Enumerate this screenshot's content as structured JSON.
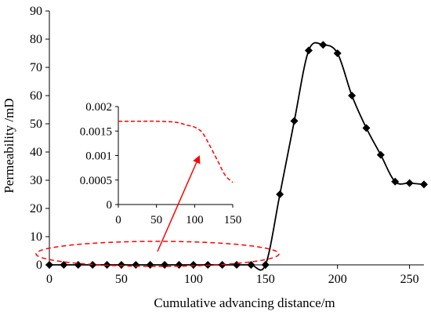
{
  "chart_data": {
    "type": "line",
    "xlabel": "Cumulative advancing  distance/m",
    "ylabel": "Permeability /mD",
    "xlim": [
      0,
      260
    ],
    "ylim": [
      0,
      90
    ],
    "x_ticks": [
      0,
      50,
      100,
      150,
      200,
      250
    ],
    "y_ticks": [
      0,
      10,
      20,
      30,
      40,
      50,
      60,
      70,
      80,
      90
    ],
    "series": [
      {
        "marker": "diamond",
        "color": "#000000",
        "x": [
          0,
          10,
          20,
          30,
          40,
          50,
          60,
          70,
          80,
          90,
          100,
          110,
          120,
          130,
          140,
          150,
          160,
          170,
          180,
          190,
          200,
          210,
          220,
          230,
          240,
          250,
          260
        ],
        "y": [
          0.0017,
          0.0017,
          0.0017,
          0.0017,
          0.0017,
          0.0017,
          0.0017,
          0.0016,
          0.0016,
          0.0016,
          0.0015,
          0.0014,
          0.0012,
          0.0009,
          0.0005,
          0.0003,
          25,
          51,
          76,
          78,
          75,
          60,
          48.5,
          39,
          29.5,
          29,
          28.5
        ]
      }
    ],
    "grid": false,
    "legend": "none",
    "inset": {
      "xlim": [
        0,
        150
      ],
      "ylim": [
        0,
        0.002
      ],
      "x_ticks": [
        "0",
        "50",
        "100",
        "150"
      ],
      "y_ticks": [
        "0",
        "0.0005",
        "0.001",
        "0.0015",
        "0.002"
      ],
      "series": [
        {
          "color": "#ff0000",
          "dash": "dashed",
          "x": [
            0,
            25,
            50,
            75,
            90,
            100,
            110,
            120,
            130,
            140,
            150
          ],
          "y": [
            0.0017,
            0.0017,
            0.0017,
            0.00168,
            0.00162,
            0.00158,
            0.00147,
            0.0012,
            0.0009,
            0.0006,
            0.00045
          ]
        }
      ]
    },
    "annotation": {
      "color": "#ff0000",
      "shape": "dashed-ellipse-with-arrow"
    }
  }
}
